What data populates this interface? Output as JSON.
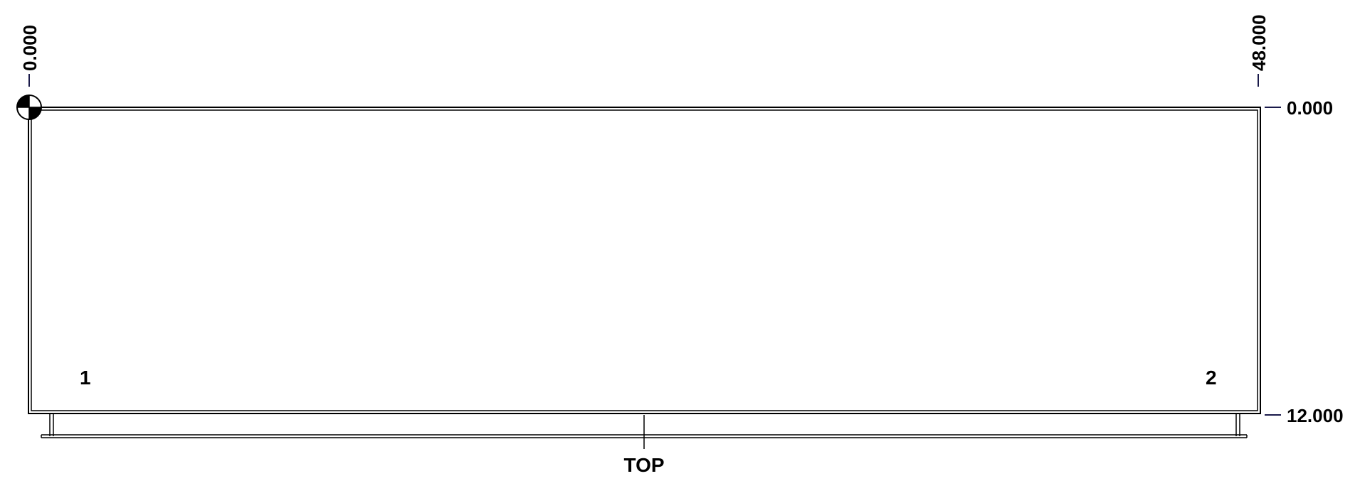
{
  "colors": {
    "outline": "#000000",
    "dimension_tick": "#1a1a4a",
    "background": "#ffffff"
  },
  "dimensions": {
    "horizontal_start": "0.000",
    "horizontal_end": "48.000",
    "vertical_top": "0.000",
    "vertical_bottom": "12.000"
  },
  "panel_labels": {
    "left": "1",
    "right": "2"
  },
  "side_label": "TOP",
  "icons": {
    "origin_marker": "datum-origin-icon"
  }
}
